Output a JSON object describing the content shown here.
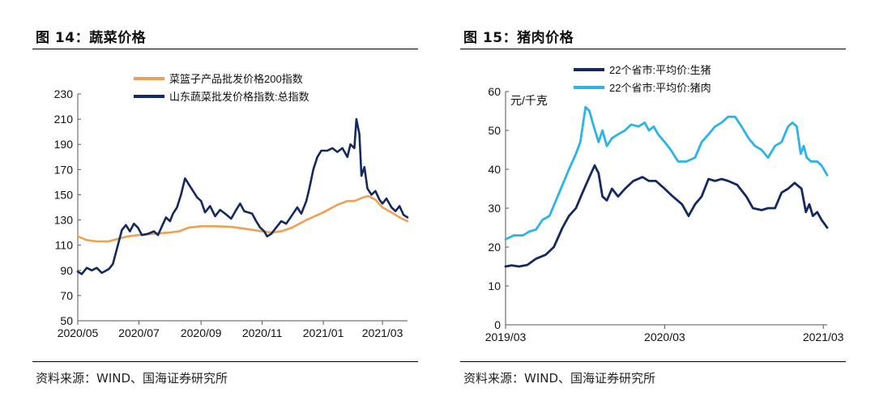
{
  "figures": [
    {
      "title": "图 14：蔬菜价格",
      "source": "资料来源：WIND、国海证券研究所"
    },
    {
      "title": "图 15：猪肉价格",
      "source": "资料来源：WIND、国海证券研究所"
    }
  ],
  "colors": {
    "navy": "#14295e",
    "orange": "#f0a050",
    "cyan": "#2ab4e8",
    "axis": "#555555"
  },
  "chart_data": [
    {
      "type": "line",
      "title": "",
      "xlabel": "",
      "ylabel": "",
      "ylim": [
        50,
        230
      ],
      "yticks": [
        50,
        70,
        90,
        110,
        130,
        150,
        170,
        190,
        210,
        230
      ],
      "xlim": [
        "2020-05-01",
        "2021-03-26"
      ],
      "xticks": [
        {
          "label": "2020/05",
          "date": "2020-05-01"
        },
        {
          "label": "2020/07",
          "date": "2020-07-01"
        },
        {
          "label": "2020/09",
          "date": "2020-09-01"
        },
        {
          "label": "2020/11",
          "date": "2020-11-01"
        },
        {
          "label": "2021/01",
          "date": "2021-01-01"
        },
        {
          "label": "2021/03",
          "date": "2021-03-01"
        }
      ],
      "legend_position": "top-center",
      "grid": false,
      "series": [
        {
          "name": "菜篮子产品批发价格200指数",
          "color": "#f0a050",
          "points": [
            [
              "2020-05-01",
              117
            ],
            [
              "2020-05-10",
              114
            ],
            [
              "2020-05-20",
              113
            ],
            [
              "2020-06-01",
              113
            ],
            [
              "2020-06-10",
              115
            ],
            [
              "2020-06-20",
              117
            ],
            [
              "2020-07-01",
              118
            ],
            [
              "2020-07-15",
              119
            ],
            [
              "2020-08-01",
              120
            ],
            [
              "2020-08-10",
              121
            ],
            [
              "2020-08-20",
              124
            ],
            [
              "2020-09-01",
              125
            ],
            [
              "2020-09-15",
              125
            ],
            [
              "2020-10-01",
              124.5
            ],
            [
              "2020-10-15",
              123
            ],
            [
              "2020-11-01",
              121
            ],
            [
              "2020-11-10",
              120
            ],
            [
              "2020-11-20",
              121
            ],
            [
              "2020-12-01",
              124
            ],
            [
              "2020-12-15",
              130
            ],
            [
              "2021-01-01",
              136
            ],
            [
              "2021-01-15",
              142
            ],
            [
              "2021-01-25",
              145
            ],
            [
              "2021-02-01",
              145
            ],
            [
              "2021-02-10",
              148
            ],
            [
              "2021-02-15",
              149
            ],
            [
              "2021-02-22",
              146
            ],
            [
              "2021-03-01",
              140
            ],
            [
              "2021-03-10",
              136
            ],
            [
              "2021-03-18",
              132
            ],
            [
              "2021-03-26",
              129
            ]
          ]
        },
        {
          "name": "山东蔬菜批发价格指数:总指数",
          "color": "#14295e",
          "points": [
            [
              "2020-05-01",
              89
            ],
            [
              "2020-05-05",
              87
            ],
            [
              "2020-05-10",
              92
            ],
            [
              "2020-05-15",
              90
            ],
            [
              "2020-05-20",
              92
            ],
            [
              "2020-05-25",
              88
            ],
            [
              "2020-06-01",
              91
            ],
            [
              "2020-06-05",
              95
            ],
            [
              "2020-06-10",
              110
            ],
            [
              "2020-06-14",
              122
            ],
            [
              "2020-06-18",
              126
            ],
            [
              "2020-06-22",
              121
            ],
            [
              "2020-06-26",
              127
            ],
            [
              "2020-06-30",
              124
            ],
            [
              "2020-07-04",
              118
            ],
            [
              "2020-07-10",
              119
            ],
            [
              "2020-07-16",
              121
            ],
            [
              "2020-07-20",
              118
            ],
            [
              "2020-07-24",
              125
            ],
            [
              "2020-07-28",
              132
            ],
            [
              "2020-08-01",
              129
            ],
            [
              "2020-08-04",
              135
            ],
            [
              "2020-08-08",
              140
            ],
            [
              "2020-08-12",
              150
            ],
            [
              "2020-08-16",
              163
            ],
            [
              "2020-08-20",
              158
            ],
            [
              "2020-08-24",
              153
            ],
            [
              "2020-08-28",
              148
            ],
            [
              "2020-09-01",
              145
            ],
            [
              "2020-09-05",
              136
            ],
            [
              "2020-09-10",
              141
            ],
            [
              "2020-09-15",
              133
            ],
            [
              "2020-09-20",
              138
            ],
            [
              "2020-09-25",
              135
            ],
            [
              "2020-10-01",
              131
            ],
            [
              "2020-10-06",
              138
            ],
            [
              "2020-10-10",
              143
            ],
            [
              "2020-10-14",
              137
            ],
            [
              "2020-10-18",
              136
            ],
            [
              "2020-10-22",
              135
            ],
            [
              "2020-10-26",
              129
            ],
            [
              "2020-10-30",
              124
            ],
            [
              "2020-11-03",
              121
            ],
            [
              "2020-11-06",
              117
            ],
            [
              "2020-11-10",
              119
            ],
            [
              "2020-11-15",
              124
            ],
            [
              "2020-11-20",
              129
            ],
            [
              "2020-11-25",
              127
            ],
            [
              "2020-12-01",
              134
            ],
            [
              "2020-12-06",
              140
            ],
            [
              "2020-12-10",
              135
            ],
            [
              "2020-12-15",
              145
            ],
            [
              "2020-12-18",
              155
            ],
            [
              "2020-12-22",
              170
            ],
            [
              "2020-12-26",
              180
            ],
            [
              "2020-12-30",
              185
            ],
            [
              "2021-01-05",
              185
            ],
            [
              "2021-01-10",
              187
            ],
            [
              "2021-01-15",
              184
            ],
            [
              "2021-01-20",
              187
            ],
            [
              "2021-01-25",
              180
            ],
            [
              "2021-01-28",
              190
            ],
            [
              "2021-02-01",
              187
            ],
            [
              "2021-02-03",
              210
            ],
            [
              "2021-02-06",
              198
            ],
            [
              "2021-02-08",
              165
            ],
            [
              "2021-02-11",
              172
            ],
            [
              "2021-02-14",
              155
            ],
            [
              "2021-02-18",
              150
            ],
            [
              "2021-02-22",
              153
            ],
            [
              "2021-02-26",
              146
            ],
            [
              "2021-03-01",
              143
            ],
            [
              "2021-03-05",
              147
            ],
            [
              "2021-03-10",
              140
            ],
            [
              "2021-03-14",
              137
            ],
            [
              "2021-03-18",
              141
            ],
            [
              "2021-03-22",
              134
            ],
            [
              "2021-03-26",
              132
            ]
          ]
        }
      ]
    },
    {
      "type": "line",
      "title": "",
      "xlabel": "",
      "ylabel": "元/千克",
      "ylim": [
        0,
        60
      ],
      "yticks": [
        0,
        10,
        20,
        30,
        40,
        50,
        60
      ],
      "xlim": [
        "2019-03-01",
        "2021-03-10"
      ],
      "xticks": [
        {
          "label": "2019/03",
          "date": "2019-03-01"
        },
        {
          "label": "2020/03",
          "date": "2020-03-01"
        },
        {
          "label": "2021/03",
          "date": "2021-03-01"
        }
      ],
      "legend_position": "top-center",
      "grid": false,
      "series": [
        {
          "name": "22个省市:平均价:生猪",
          "color": "#14295e",
          "points": [
            [
              "2019-03-01",
              15
            ],
            [
              "2019-03-15",
              15.3
            ],
            [
              "2019-04-01",
              15
            ],
            [
              "2019-04-20",
              15.4
            ],
            [
              "2019-05-10",
              17
            ],
            [
              "2019-06-01",
              18
            ],
            [
              "2019-06-20",
              20
            ],
            [
              "2019-07-10",
              25
            ],
            [
              "2019-07-25",
              28
            ],
            [
              "2019-08-10",
              30
            ],
            [
              "2019-08-25",
              34
            ],
            [
              "2019-09-10",
              38
            ],
            [
              "2019-09-22",
              41
            ],
            [
              "2019-10-01",
              39
            ],
            [
              "2019-10-10",
              33
            ],
            [
              "2019-10-20",
              32
            ],
            [
              "2019-11-01",
              35
            ],
            [
              "2019-11-15",
              33
            ],
            [
              "2019-12-01",
              35
            ],
            [
              "2019-12-20",
              37
            ],
            [
              "2020-01-10",
              38
            ],
            [
              "2020-01-25",
              37
            ],
            [
              "2020-02-10",
              37
            ],
            [
              "2020-03-01",
              35
            ],
            [
              "2020-03-20",
              33
            ],
            [
              "2020-04-10",
              31
            ],
            [
              "2020-04-25",
              28
            ],
            [
              "2020-05-10",
              31
            ],
            [
              "2020-05-25",
              33
            ],
            [
              "2020-06-10",
              37.5
            ],
            [
              "2020-06-25",
              37
            ],
            [
              "2020-07-10",
              37.5
            ],
            [
              "2020-07-25",
              37
            ],
            [
              "2020-08-15",
              36
            ],
            [
              "2020-09-05",
              33
            ],
            [
              "2020-09-20",
              30
            ],
            [
              "2020-10-10",
              29.5
            ],
            [
              "2020-10-25",
              30
            ],
            [
              "2020-11-10",
              30
            ],
            [
              "2020-11-25",
              34
            ],
            [
              "2020-12-10",
              35
            ],
            [
              "2020-12-25",
              36.5
            ],
            [
              "2021-01-10",
              35
            ],
            [
              "2021-01-20",
              29
            ],
            [
              "2021-01-28",
              31
            ],
            [
              "2021-02-05",
              28
            ],
            [
              "2021-02-15",
              29
            ],
            [
              "2021-02-25",
              27
            ],
            [
              "2021-03-10",
              25
            ]
          ]
        },
        {
          "name": "22个省市:平均价:猪肉",
          "color": "#2ab4e8",
          "points": [
            [
              "2019-03-01",
              22
            ],
            [
              "2019-03-20",
              23
            ],
            [
              "2019-04-10",
              23
            ],
            [
              "2019-04-25",
              24
            ],
            [
              "2019-05-10",
              24.5
            ],
            [
              "2019-05-25",
              27
            ],
            [
              "2019-06-10",
              28
            ],
            [
              "2019-06-25",
              32
            ],
            [
              "2019-07-10",
              36
            ],
            [
              "2019-07-25",
              40
            ],
            [
              "2019-08-10",
              44
            ],
            [
              "2019-08-20",
              47
            ],
            [
              "2019-09-01",
              56
            ],
            [
              "2019-09-10",
              55
            ],
            [
              "2019-09-20",
              51
            ],
            [
              "2019-10-01",
              47
            ],
            [
              "2019-10-10",
              50
            ],
            [
              "2019-10-20",
              46
            ],
            [
              "2019-11-01",
              48
            ],
            [
              "2019-11-15",
              49
            ],
            [
              "2019-12-01",
              50
            ],
            [
              "2019-12-15",
              51.5
            ],
            [
              "2020-01-01",
              51
            ],
            [
              "2020-01-15",
              52
            ],
            [
              "2020-01-25",
              50
            ],
            [
              "2020-02-05",
              51
            ],
            [
              "2020-02-15",
              49
            ],
            [
              "2020-03-01",
              47
            ],
            [
              "2020-03-15",
              45
            ],
            [
              "2020-04-01",
              42
            ],
            [
              "2020-04-20",
              42
            ],
            [
              "2020-05-10",
              43
            ],
            [
              "2020-05-25",
              47
            ],
            [
              "2020-06-10",
              49
            ],
            [
              "2020-06-25",
              51
            ],
            [
              "2020-07-10",
              52
            ],
            [
              "2020-07-25",
              53.5
            ],
            [
              "2020-08-10",
              53.5
            ],
            [
              "2020-08-25",
              51
            ],
            [
              "2020-09-10",
              48
            ],
            [
              "2020-09-25",
              46
            ],
            [
              "2020-10-10",
              45
            ],
            [
              "2020-10-25",
              43
            ],
            [
              "2020-11-10",
              46
            ],
            [
              "2020-11-25",
              47
            ],
            [
              "2020-12-10",
              51
            ],
            [
              "2020-12-20",
              52
            ],
            [
              "2020-12-30",
              51
            ],
            [
              "2021-01-08",
              44
            ],
            [
              "2021-01-15",
              46
            ],
            [
              "2021-01-22",
              43
            ],
            [
              "2021-02-01",
              42
            ],
            [
              "2021-02-15",
              42
            ],
            [
              "2021-02-25",
              41
            ],
            [
              "2021-03-10",
              38.5
            ]
          ]
        }
      ]
    }
  ]
}
